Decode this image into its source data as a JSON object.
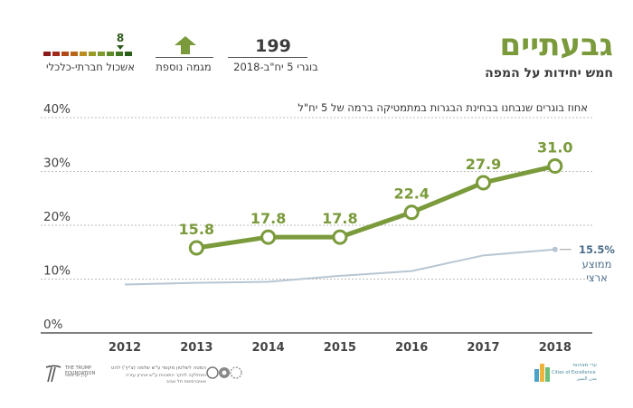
{
  "header": {
    "city": "גבעתיים",
    "subtitle": "חמש יחידות על המפה",
    "graduates_count": "199",
    "graduates_label": "בוגרי 5 יח\"ב-2018",
    "trend_label": "מגמה נוספת",
    "cluster_value": "8",
    "cluster_label": "אשכול חברתי-כלכלי",
    "colors": {
      "accent": "#7a9a3b",
      "national": "#b8c6d2",
      "label_blue": "#4b6d8a"
    }
  },
  "chart_data": {
    "type": "line",
    "title": "אחוז בוגרים שנבחנו בבחינת הבגרות במתמטיקה ברמה של 5 יח\"ל",
    "categories": [
      "2012",
      "2013",
      "2014",
      "2015",
      "2016",
      "2017",
      "2018"
    ],
    "y_tick_labels": [
      "40%",
      "30%",
      "20%",
      "10%",
      "0%"
    ],
    "y_ticks": [
      40,
      30,
      20,
      10,
      0
    ],
    "ylim": [
      0,
      40
    ],
    "grid": true,
    "series": [
      {
        "name": "גבעתיים",
        "values": [
          null,
          15.8,
          17.8,
          17.8,
          22.4,
          27.9,
          31.0
        ],
        "labels": [
          "",
          "15.8",
          "17.8",
          "17.8",
          "22.4",
          "27.9",
          "31.0"
        ]
      },
      {
        "name": "ממוצע ארצי",
        "values": [
          9.0,
          9.3,
          9.5,
          10.6,
          11.5,
          14.4,
          15.5
        ],
        "end_label": "15.5%",
        "legend_line1": "ממוצע",
        "legend_line2": "ארצי"
      }
    ]
  },
  "footer": {
    "left_org": "THE TRUMP FOUNDATION",
    "left_org_he": "קרן טראמפ",
    "middle_text1": "המטה לשלטון מקומי ע\"ש שלמה (צ'יץ') להט",
    "middle_text2": "המחלקה לחקר התוכנית ע\"ש אהרון עזרה",
    "middle_text3": "אוניברסיטת תל אביב",
    "right_org_he": "ערי מצוינות",
    "right_org_en": "Cities of Excellence",
    "right_org_ar": "مدن التميز"
  }
}
